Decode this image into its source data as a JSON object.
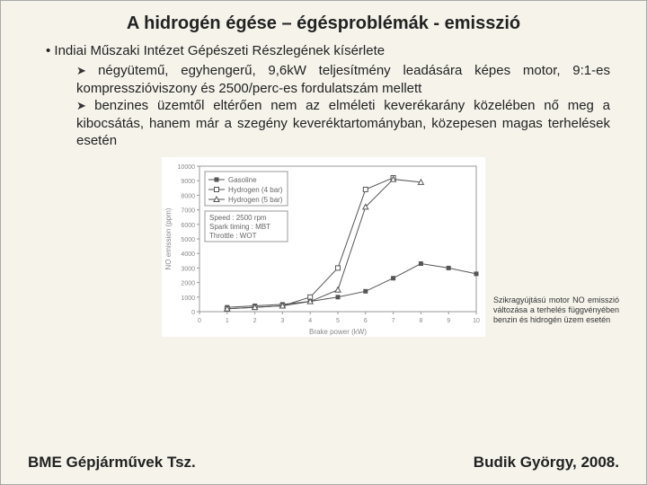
{
  "title": "A hidrogén égése – égésproblémák - emisszió",
  "main_bullet": "Indiai Műszaki Intézet Gépészeti Részlegének kísérlete",
  "sub1": "négyütemű, egyhengerű, 9,6kW teljesítmény leadására képes motor, 9:1-es kompresszióviszony és 2500/perc-es fordulatszám mellett",
  "sub2": "benzines üzemtől eltérően nem az elméleti keverékarány közelében nő meg a kibocsátás, hanem már a szegény keveréktartományban, közepesen magas terhelések esetén",
  "caption": "Szikragyújtású motor NO emisszió változása a terhelés függvényében benzin és hidrogén üzem esetén",
  "footer_left": "BME Gépjárművek Tsz.",
  "footer_right": "Budik György, 2008.",
  "chart": {
    "type": "line",
    "xlabel": "Brake power (kW)",
    "ylabel": "NO emission (ppm)",
    "xlim": [
      0,
      10
    ],
    "ylim": [
      0,
      10000
    ],
    "xtick_step": 1,
    "ytick_step": 1000,
    "background_color": "#ffffff",
    "grid_color": "#dddddd",
    "axis_color": "#999999",
    "text_color": "#888888",
    "label_fontsize": 8,
    "tick_fontsize": 7,
    "legend": {
      "position": "top-left",
      "items": [
        "Gasoline",
        "Hydrogen (4 bar)",
        "Hydrogen (5 bar)"
      ],
      "box_text": [
        "Speed : 2500 rpm",
        "Spark timing : MBT",
        "Throttle : WOT"
      ]
    },
    "series": [
      {
        "name": "Gasoline",
        "marker": "square-filled",
        "color": "#555555",
        "x": [
          1,
          2,
          3,
          4,
          5,
          6,
          7,
          8,
          9,
          10
        ],
        "y": [
          300,
          400,
          500,
          700,
          1000,
          1400,
          2300,
          3300,
          3000,
          2600
        ]
      },
      {
        "name": "Hydrogen (4 bar)",
        "marker": "square-open",
        "color": "#555555",
        "x": [
          1,
          2,
          3,
          4,
          5,
          6,
          7
        ],
        "y": [
          200,
          300,
          400,
          1000,
          3000,
          8400,
          9200
        ]
      },
      {
        "name": "Hydrogen (5 bar)",
        "marker": "triangle-open",
        "color": "#555555",
        "x": [
          1,
          2,
          3,
          4,
          5,
          6,
          7,
          8
        ],
        "y": [
          200,
          300,
          400,
          700,
          1500,
          7200,
          9100,
          8900
        ]
      }
    ]
  }
}
